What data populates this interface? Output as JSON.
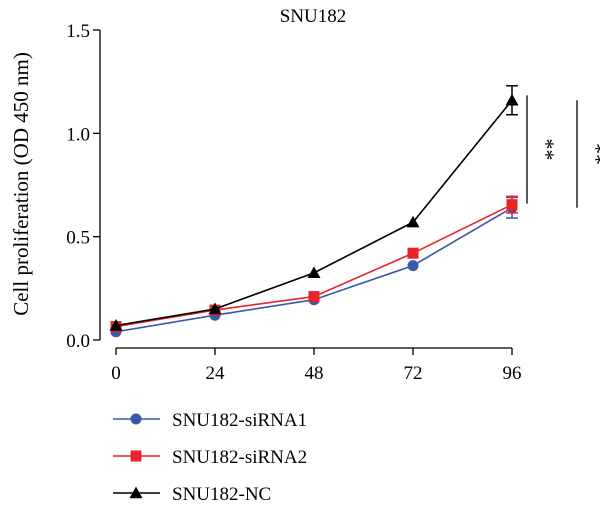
{
  "chart_data": {
    "type": "line",
    "title": "SNU182",
    "xlabel": "",
    "ylabel": "Cell proliferation (OD 450 nm)",
    "x": [
      0,
      24,
      48,
      72,
      96
    ],
    "x_tick_labels": [
      "0",
      "24",
      "48",
      "72",
      "96"
    ],
    "ylim": [
      0,
      1.5
    ],
    "y_ticks": [
      0.0,
      0.5,
      1.0,
      1.5
    ],
    "y_tick_labels": [
      "0.0",
      "0.5",
      "1.0",
      "1.5"
    ],
    "grid": false,
    "legend_position": "bottom-left",
    "series": [
      {
        "name": "SNU182-siRNA1",
        "color": "#3b57a7",
        "marker": "circle",
        "values": [
          0.04,
          0.12,
          0.195,
          0.36,
          0.64
        ],
        "error": [
          0,
          0,
          0,
          0,
          0.05
        ]
      },
      {
        "name": "SNU182-siRNA2",
        "color": "#e8242a",
        "marker": "square",
        "values": [
          0.065,
          0.145,
          0.21,
          0.42,
          0.655
        ],
        "error": [
          0,
          0,
          0,
          0,
          0.04
        ]
      },
      {
        "name": "SNU182-NC",
        "color": "#000000",
        "marker": "triangle",
        "values": [
          0.07,
          0.15,
          0.325,
          0.57,
          1.16
        ],
        "error": [
          0,
          0,
          0,
          0,
          0.07
        ]
      }
    ],
    "annotations": [
      {
        "text": "**",
        "from": 1.16,
        "to": 0.66
      },
      {
        "text": "**",
        "from": 1.16,
        "to": 0.64
      }
    ]
  }
}
